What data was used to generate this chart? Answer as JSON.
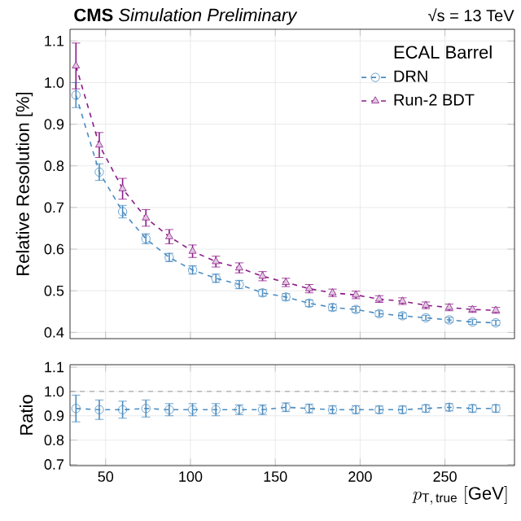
{
  "chart_data": [
    {
      "type": "line",
      "title": "**CMS** *Simulation Preliminary*",
      "subtitle": "√s = 13 TeV",
      "ylabel": "Relative Resolution [%]",
      "legend_title": "ECAL Barrel",
      "legend": "top right",
      "grid": true,
      "line_style": "dashed",
      "tick_labels": "y",
      "x": [
        32.5,
        46.25,
        60,
        73.75,
        87.5,
        101.25,
        115,
        128.75,
        142.5,
        156.25,
        170,
        183.75,
        197.5,
        211.25,
        225,
        238.75,
        252.5,
        266.25,
        280
      ],
      "xlim": [
        29,
        291
      ],
      "xticks": [
        50,
        100,
        150,
        200,
        250
      ],
      "ylim": [
        0.385,
        1.128
      ],
      "yticks": [
        0.4,
        0.5,
        0.6,
        0.7,
        0.8,
        0.9,
        {
          "value": 1.0,
          "label": "1.0"
        },
        1.1
      ],
      "series": [
        {
          "name": "DRN",
          "color": "#4a8cc0",
          "marker": "circle",
          "values": [
            0.97,
            0.785,
            0.69,
            0.625,
            0.58,
            0.55,
            0.53,
            0.515,
            0.495,
            0.485,
            0.47,
            0.46,
            0.455,
            0.445,
            0.44,
            0.435,
            0.43,
            0.425,
            0.423
          ],
          "errors": [
            0.03,
            0.02,
            0.015,
            0.012,
            0.01,
            0.01,
            0.01,
            0.01,
            0.008,
            0.008,
            0.008,
            0.008,
            0.007,
            0.007,
            0.007,
            0.006,
            0.006,
            0.006,
            0.006
          ]
        },
        {
          "name": "Run-2 BDT",
          "color": "#8b1a89",
          "marker": "triangle",
          "values": [
            1.04,
            0.85,
            0.745,
            0.675,
            0.63,
            0.595,
            0.57,
            0.555,
            0.535,
            0.52,
            0.505,
            0.495,
            0.49,
            0.48,
            0.475,
            0.465,
            0.46,
            0.455,
            0.453
          ],
          "errors": [
            0.055,
            0.03,
            0.025,
            0.02,
            0.017,
            0.015,
            0.013,
            0.012,
            0.011,
            0.01,
            0.01,
            0.009,
            0.009,
            0.008,
            0.008,
            0.008,
            0.008,
            0.007,
            0.007
          ]
        }
      ]
    },
    {
      "type": "line",
      "xlabel": "p_{\\mathrm{T,\\,true}}\\ [\\mathrm{GeV}]",
      "ylabel": "Ratio",
      "grid": true,
      "line_style": "dashed",
      "marker": "circle",
      "x": [
        32.5,
        46.25,
        60,
        73.75,
        87.5,
        101.25,
        115,
        128.75,
        142.5,
        156.25,
        170,
        183.75,
        197.5,
        211.25,
        225,
        238.75,
        252.5,
        266.25,
        280
      ],
      "xlim": [
        29,
        291
      ],
      "xticks": [
        50,
        100,
        150,
        200,
        250
      ],
      "ylim": [
        0.695,
        1.11
      ],
      "yticks": [
        0.7,
        0.8,
        0.9,
        {
          "value": 1.0,
          "label": "1.0"
        },
        1.1
      ],
      "ref_lines": [
        {
          "axis": "y",
          "value": 1.0,
          "color": "#808080",
          "line_style": "dashed"
        }
      ],
      "series": [
        {
          "color": "#4a8cc0",
          "values": [
            0.93,
            0.925,
            0.925,
            0.93,
            0.925,
            0.925,
            0.925,
            0.925,
            0.925,
            0.935,
            0.93,
            0.925,
            0.925,
            0.925,
            0.925,
            0.93,
            0.935,
            0.93,
            0.93
          ],
          "errors": [
            0.055,
            0.04,
            0.035,
            0.035,
            0.025,
            0.025,
            0.025,
            0.02,
            0.02,
            0.018,
            0.018,
            0.016,
            0.016,
            0.015,
            0.015,
            0.015,
            0.015,
            0.015,
            0.015
          ]
        }
      ]
    }
  ]
}
